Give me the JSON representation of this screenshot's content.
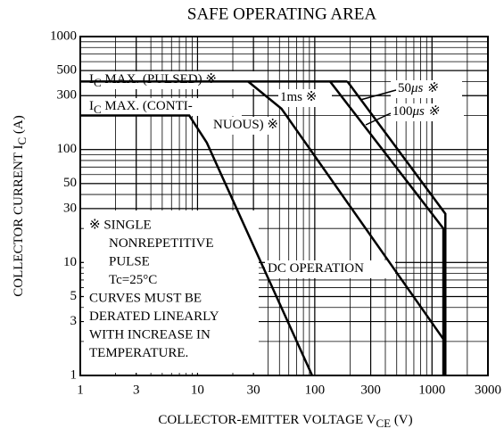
{
  "chart_data": {
    "type": "line",
    "title": "SAFE OPERATING AREA",
    "x_label": [
      "COLLECTOR-EMITTER VOLTAGE  V",
      "CE",
      "  (V)"
    ],
    "y_label": [
      "COLLECTOR CURRENT  I",
      "C",
      "  (A)"
    ],
    "xscale": "log",
    "yscale": "log",
    "grid": true,
    "minor_grid": true,
    "xlim": [
      1,
      3000
    ],
    "ylim": [
      1,
      1000
    ],
    "xticks": [
      1,
      3,
      10,
      30,
      100,
      300,
      1000,
      3000
    ],
    "yticks": [
      1,
      3,
      5,
      10,
      30,
      50,
      100,
      300,
      500,
      1000
    ],
    "series": [
      {
        "color": "#000000",
        "x": [
          1,
          190
        ],
        "values": [
          400,
          400
        ]
      },
      {
        "color": "#000000",
        "x": [
          1,
          8.5,
          12,
          95
        ],
        "values": [
          200,
          200,
          115,
          1
        ]
      },
      {
        "color": "#000000",
        "x": [
          27,
          52,
          1250
        ],
        "values": [
          400,
          230,
          2.1
        ]
      },
      {
        "color": "#000000",
        "x": [
          135,
          1250,
          1250
        ],
        "values": [
          400,
          20,
          1
        ]
      },
      {
        "color": "#000000",
        "x": [
          190,
          1300,
          1300
        ],
        "values": [
          400,
          27,
          1
        ]
      }
    ],
    "annotations": [
      [
        "I",
        "C",
        " MAX. (PULSED) ※"
      ],
      [
        "I",
        "C",
        " MAX. (CONTI-"
      ],
      [
        "NUOUS) ※"
      ],
      [
        "1ms ※"
      ],
      [
        "50",
        "μs ※"
      ],
      [
        "100",
        "μs ※"
      ],
      [
        "DC OPERATION"
      ]
    ],
    "note": [
      "※ SINGLE",
      "NONREPETITIVE",
      "PULSE",
      "Tc=25°C",
      "CURVES MUST BE",
      "DERATED LINEARLY",
      "WITH INCREASE IN",
      "TEMPERATURE."
    ]
  }
}
